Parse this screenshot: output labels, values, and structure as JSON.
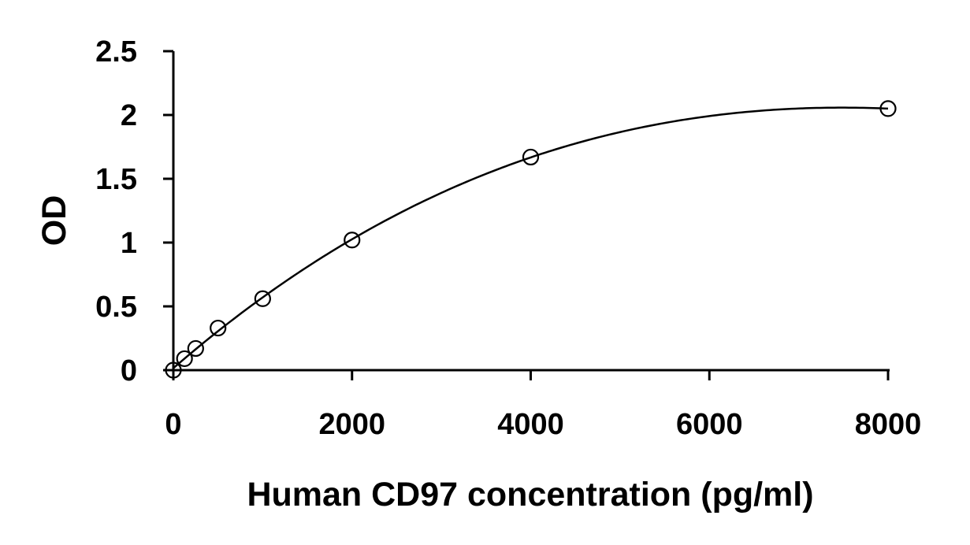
{
  "chart_data": {
    "type": "scatter",
    "title": "",
    "xlabel": "Human CD97 concentration (pg/ml)",
    "ylabel": "OD",
    "xlim": [
      0,
      8000
    ],
    "ylim": [
      0,
      2.5
    ],
    "xticks": [
      0,
      2000,
      4000,
      6000,
      8000
    ],
    "yticks": [
      0,
      0.5,
      1,
      1.5,
      2,
      2.5
    ],
    "xtick_labels": [
      "0",
      "2000",
      "4000",
      "6000",
      "8000"
    ],
    "ytick_labels": [
      "0",
      "0.5",
      "1",
      "1.5",
      "2",
      "2.5"
    ],
    "grid": false,
    "legend": "none",
    "series": [
      {
        "x": [
          0,
          125,
          250,
          500,
          1000,
          2000,
          4000,
          8000
        ],
        "y": [
          0.0,
          0.09,
          0.17,
          0.33,
          0.56,
          1.02,
          1.67,
          2.05
        ],
        "marker": "open-circle",
        "fit": "polynomial"
      }
    ]
  }
}
